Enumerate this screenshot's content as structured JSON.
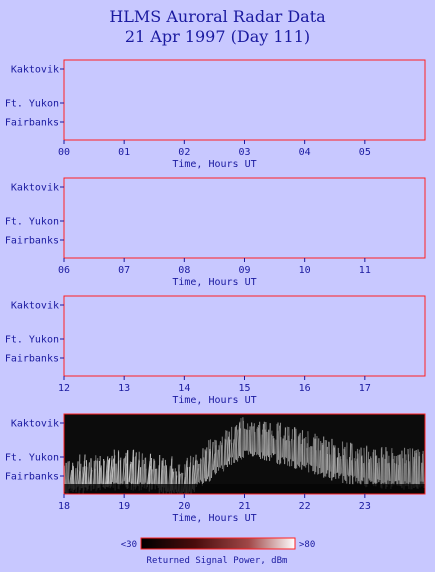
{
  "title_line1": "HLMS Auroral Radar Data",
  "title_line2": "21 Apr 1997 (Day 111)",
  "colors": {
    "background": "#c8c8ff",
    "frame": "#ff2020",
    "text": "#1a1aa0"
  },
  "chart_data": [
    {
      "type": "heatmap",
      "xlabel": "Time, Hours UT",
      "x_ticks": [
        "00",
        "01",
        "02",
        "03",
        "04",
        "05"
      ],
      "xlim": [
        0,
        6
      ],
      "y_ticks": [
        "Kaktovik",
        "Ft. Yukon",
        "Fairbanks"
      ],
      "has_data": false
    },
    {
      "type": "heatmap",
      "xlabel": "Time, Hours UT",
      "x_ticks": [
        "06",
        "07",
        "08",
        "09",
        "10",
        "11"
      ],
      "xlim": [
        6,
        12
      ],
      "y_ticks": [
        "Kaktovik",
        "Ft. Yukon",
        "Fairbanks"
      ],
      "has_data": false
    },
    {
      "type": "heatmap",
      "xlabel": "Time, Hours UT",
      "x_ticks": [
        "12",
        "13",
        "14",
        "15",
        "16",
        "17"
      ],
      "xlim": [
        12,
        18
      ],
      "y_ticks": [
        "Kaktovik",
        "Ft. Yukon",
        "Fairbanks"
      ],
      "has_data": false
    },
    {
      "type": "heatmap",
      "xlabel": "Time, Hours UT",
      "x_ticks": [
        "18",
        "19",
        "20",
        "21",
        "22",
        "23"
      ],
      "xlim": [
        18,
        24
      ],
      "y_ticks": [
        "Kaktovik",
        "Ft. Yukon",
        "Fairbanks"
      ],
      "has_data": true,
      "echo_band_hours": [
        18.0,
        18.5,
        19.0,
        19.5,
        20.0,
        20.5,
        21.0,
        21.5,
        22.0,
        22.5,
        23.0,
        23.5,
        24.0
      ],
      "echo_band_position": [
        0.55,
        0.5,
        0.45,
        0.5,
        0.6,
        0.3,
        0.05,
        0.12,
        0.22,
        0.35,
        0.42,
        0.45,
        0.45
      ],
      "echo_band_power": [
        0.7,
        0.8,
        0.85,
        0.75,
        0.7,
        0.55,
        0.5,
        0.45,
        0.5,
        0.55,
        0.55,
        0.5,
        0.45
      ]
    }
  ],
  "colorbar": {
    "min_label": "<30",
    "max_label": ">80",
    "caption": "Returned Signal Power, dBm",
    "range": [
      30,
      80
    ],
    "colors": [
      "#000000",
      "#5a1010",
      "#b05050",
      "#ffffff"
    ]
  }
}
